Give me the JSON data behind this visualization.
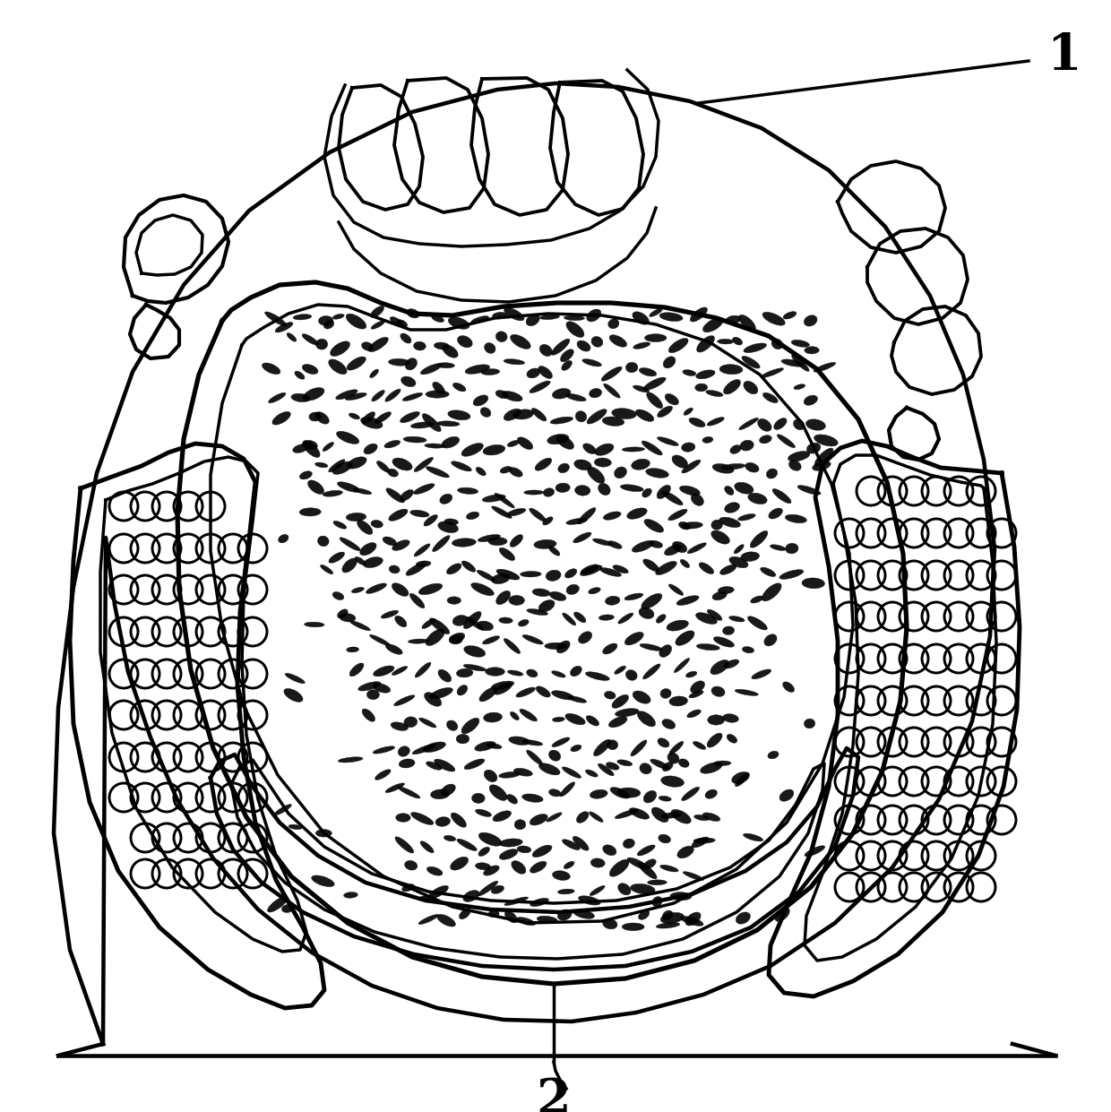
{
  "bg_color": "#ffffff",
  "line_color": "#000000",
  "line_width": 2.5,
  "fig_width": 12.4,
  "fig_height": 12.41,
  "dpi": 100,
  "label1": "1",
  "label2": "2"
}
